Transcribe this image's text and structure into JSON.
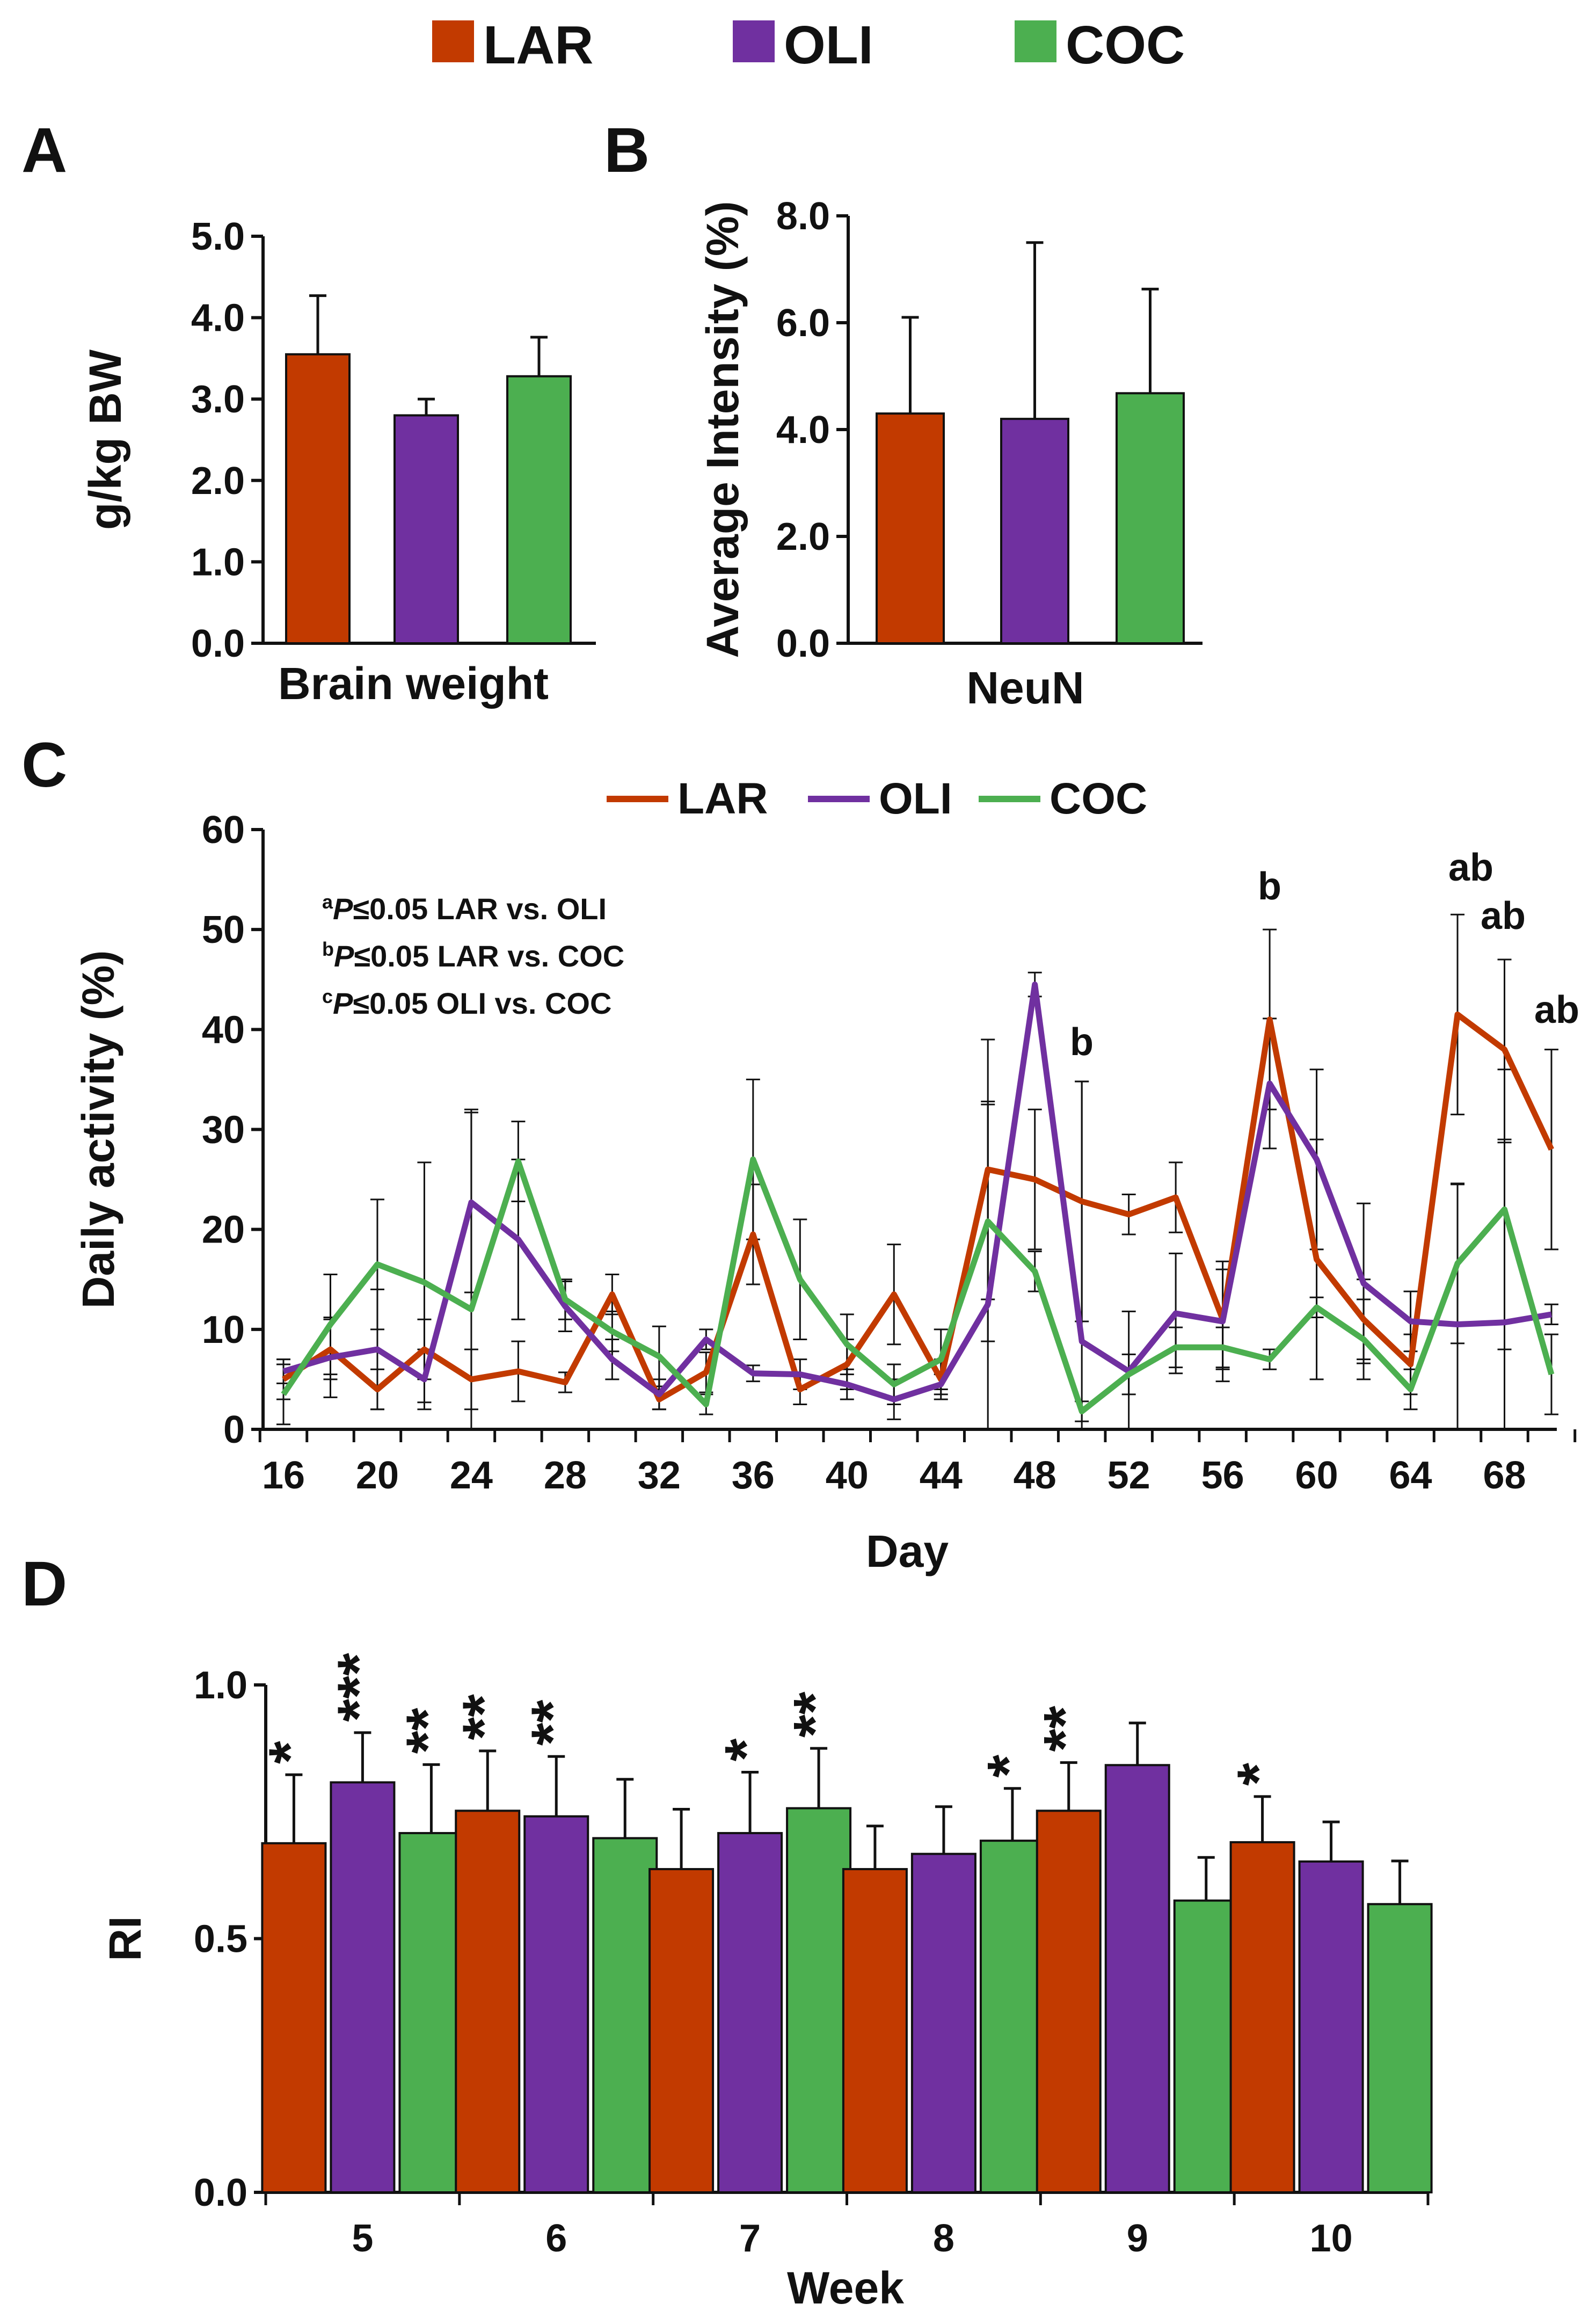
{
  "colors": {
    "LAR": "#C23A00",
    "OLI": "#7030A0",
    "COC": "#4CAF50",
    "axis": "#111111"
  },
  "legend_top": [
    "LAR",
    "OLI",
    "COC"
  ],
  "panel_labels": [
    "A",
    "B",
    "C",
    "D"
  ],
  "chart_data": [
    {
      "id": "A",
      "type": "bar",
      "categories": [
        "Brain weight"
      ],
      "series": [
        {
          "name": "LAR",
          "values": [
            3.55
          ],
          "errors": [
            0.72
          ]
        },
        {
          "name": "OLI",
          "values": [
            2.8
          ],
          "errors": [
            0.2
          ]
        },
        {
          "name": "COC",
          "values": [
            3.28
          ],
          "errors": [
            0.48
          ]
        }
      ],
      "ylabel": "g/kg BW",
      "ylim": [
        0,
        5
      ],
      "yticks": [
        "0.0",
        "1.0",
        "2.0",
        "3.0",
        "4.0",
        "5.0"
      ]
    },
    {
      "id": "B",
      "type": "bar",
      "categories": [
        "NeuN"
      ],
      "series": [
        {
          "name": "LAR",
          "values": [
            4.3
          ],
          "errors": [
            1.8
          ]
        },
        {
          "name": "OLI",
          "values": [
            4.2
          ],
          "errors": [
            3.3
          ]
        },
        {
          "name": "COC",
          "values": [
            4.68
          ],
          "errors": [
            1.95
          ]
        }
      ],
      "ylabel": "Average Intensity (%)",
      "ylim": [
        0,
        8
      ],
      "yticks": [
        "0.0",
        "2.0",
        "4.0",
        "6.0",
        "8.0"
      ]
    },
    {
      "id": "C",
      "type": "line",
      "x": [
        16,
        18,
        20,
        22,
        24,
        26,
        28,
        30,
        32,
        34,
        36,
        38,
        40,
        42,
        44,
        46,
        48,
        50,
        52,
        54,
        56,
        58,
        60,
        62,
        64,
        66,
        68,
        70
      ],
      "series": [
        {
          "name": "LAR",
          "values": [
            5,
            8,
            4,
            8,
            5,
            5.8,
            4.7,
            13.5,
            3,
            5.7,
            19.5,
            4,
            6.5,
            13.5,
            5,
            26,
            25,
            22.8,
            21.5,
            23.2,
            11,
            41,
            17,
            11,
            6.5,
            41.5,
            38,
            28
          ],
          "errors": [
            2,
            3,
            2,
            3,
            3,
            3,
            1,
            2,
            1,
            2,
            5,
            1.5,
            2.5,
            5,
            2,
            13,
            7,
            12,
            2,
            3.5,
            5,
            9,
            12,
            4,
            3,
            10,
            9,
            10
          ]
        },
        {
          "name": "OLI",
          "values": [
            5.8,
            7.2,
            8,
            5,
            22.7,
            19,
            12.3,
            7,
            3.5,
            9,
            5.6,
            5.5,
            4.5,
            3,
            4.5,
            12.5,
            44.5,
            8.8,
            5.8,
            11.6,
            10.8,
            34.6,
            27,
            14.6,
            10.8,
            10.5,
            10.7,
            11.5
          ],
          "errors": [
            1.2,
            4,
            6,
            3,
            9,
            8,
            2.5,
            2,
            1.5,
            1,
            0.8,
            1.5,
            1.5,
            2,
            1,
            20,
            1.2,
            26,
            6,
            6,
            6,
            6.5,
            9,
            8,
            3,
            14,
            18,
            1
          ]
        },
        {
          "name": "COC",
          "values": [
            3.5,
            10.5,
            16.5,
            14.7,
            12,
            26.8,
            13,
            9.8,
            7.3,
            2.5,
            27,
            15,
            8.5,
            4.5,
            7,
            20.8,
            15.8,
            1.8,
            5.5,
            8.2,
            8.2,
            7,
            12.2,
            9,
            4,
            16.6,
            22,
            5.5
          ],
          "errors": [
            3,
            5,
            6.5,
            12,
            20,
            4,
            2,
            2,
            3,
            1,
            8,
            6,
            3,
            2,
            3,
            12,
            2,
            1,
            2,
            2,
            2,
            1,
            1,
            4,
            2,
            8,
            14,
            4
          ]
        }
      ],
      "xlabel": "Day",
      "ylabel": "Daily activity (%)",
      "ylim": [
        0,
        60
      ],
      "xlim": [
        15,
        71
      ],
      "xticks": [
        "16",
        "20",
        "24",
        "28",
        "32",
        "36",
        "40",
        "44",
        "48",
        "52",
        "56",
        "60",
        "64",
        "68"
      ],
      "yticks": [
        "0",
        "10",
        "20",
        "30",
        "40",
        "50",
        "60"
      ],
      "legend": [
        "LAR",
        "OLI",
        "COC"
      ],
      "notes": [
        {
          "sup": "a",
          "italic": "P",
          "rest": "≤0.05 LAR vs. OLI"
        },
        {
          "sup": "b",
          "italic": "P",
          "rest": "≤0.05 LAR vs. COC"
        },
        {
          "sup": "c",
          "italic": "P",
          "rest": "≤0.05 OLI vs. COC"
        }
      ],
      "annotations": [
        {
          "text": "b",
          "day": 50
        },
        {
          "text": "b",
          "day": 58
        },
        {
          "text": "ab",
          "day": 66
        },
        {
          "text": "ab",
          "day": 68
        },
        {
          "text": "ab",
          "day": 70
        }
      ]
    },
    {
      "id": "D",
      "type": "bar",
      "categories": [
        "5",
        "6",
        "7",
        "8",
        "9",
        "10"
      ],
      "series": [
        {
          "name": "LAR",
          "values": [
            0.688,
            0.752,
            0.637,
            0.637,
            0.752,
            0.69
          ],
          "errors": [
            0.135,
            0.118,
            0.118,
            0.085,
            0.095,
            0.09
          ]
        },
        {
          "name": "OLI",
          "values": [
            0.808,
            0.741,
            0.708,
            0.667,
            0.842,
            0.652
          ],
          "errors": [
            0.098,
            0.118,
            0.12,
            0.093,
            0.083,
            0.078
          ]
        },
        {
          "name": "COC",
          "values": [
            0.708,
            0.698,
            0.757,
            0.693,
            0.575,
            0.568
          ],
          "errors": [
            0.135,
            0.116,
            0.118,
            0.103,
            0.085,
            0.085
          ]
        }
      ],
      "significance": [
        [
          "*",
          "***",
          "**"
        ],
        [
          "**",
          "**",
          ""
        ],
        [
          "",
          "*",
          "**"
        ],
        [
          "",
          "",
          "*"
        ],
        [
          "**",
          "",
          ""
        ],
        [
          "*",
          "",
          ""
        ]
      ],
      "xlabel": "Week",
      "ylabel": "RI",
      "ylim": [
        0,
        1
      ],
      "yticks": [
        "0.0",
        "0.5",
        "1.0"
      ]
    }
  ]
}
